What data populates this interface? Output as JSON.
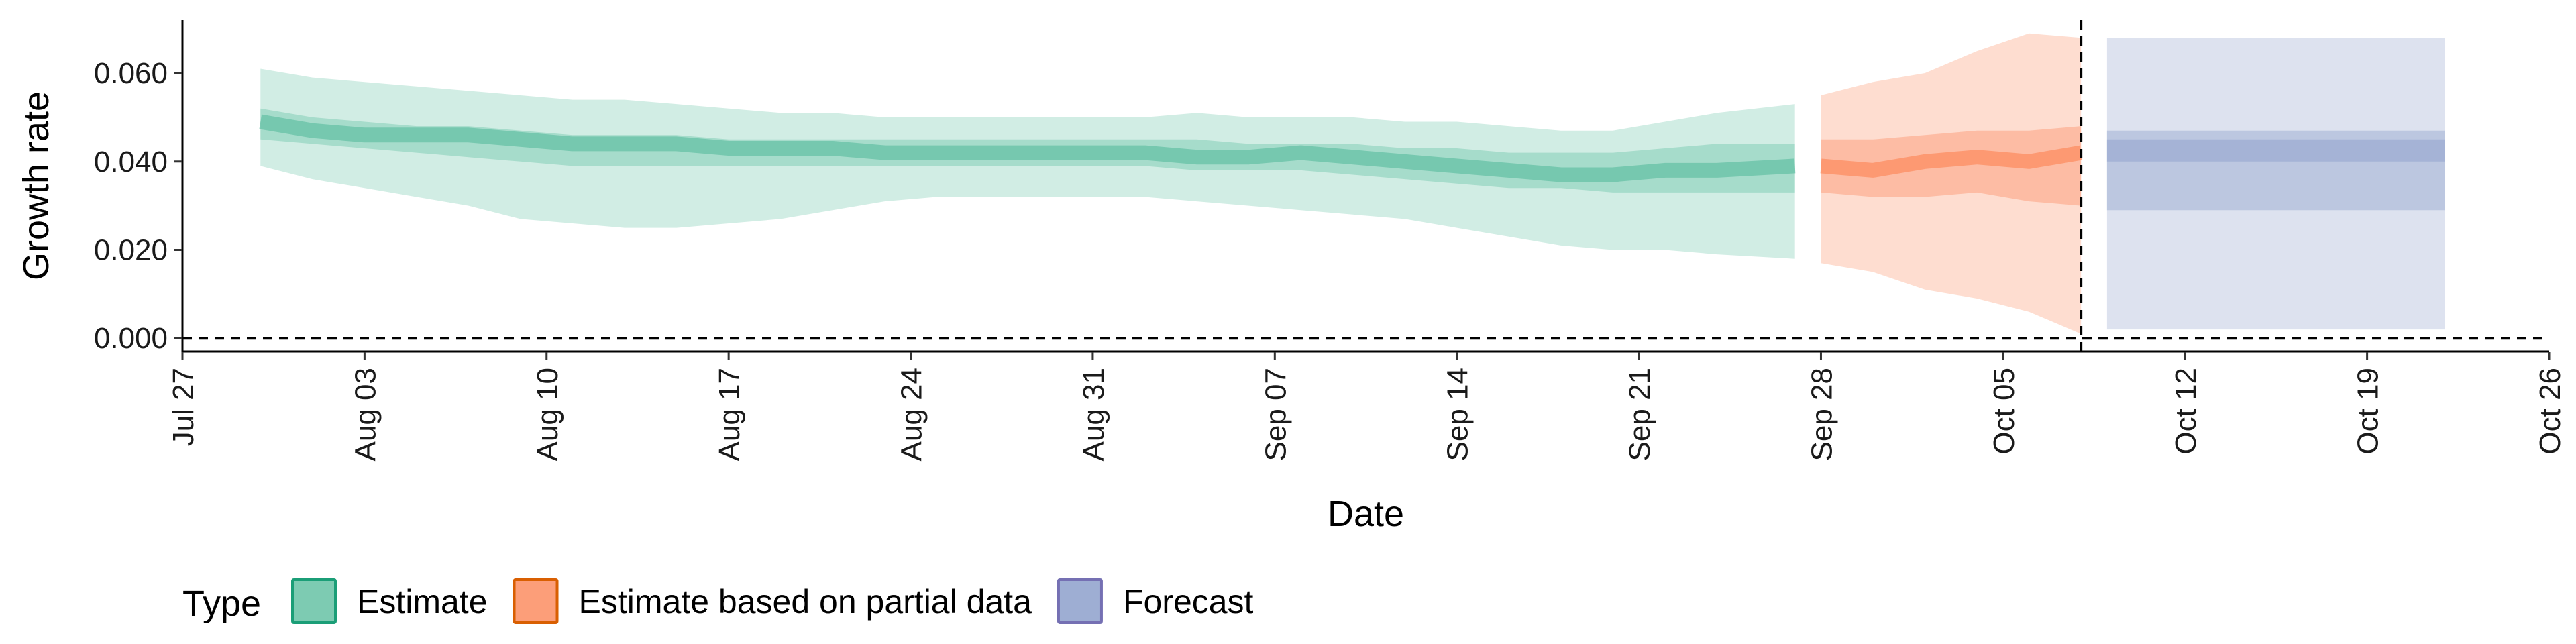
{
  "chart_data": {
    "type": "area",
    "xlabel": "Date",
    "ylabel": "Growth rate",
    "xlim": [
      "2021-07-27",
      "2021-10-26"
    ],
    "ylim": [
      -0.003,
      0.072
    ],
    "x_ticks": [
      "2021-07-27",
      "2021-08-03",
      "2021-08-10",
      "2021-08-17",
      "2021-08-24",
      "2021-08-31",
      "2021-09-07",
      "2021-09-14",
      "2021-09-21",
      "2021-09-28",
      "2021-10-05",
      "2021-10-12",
      "2021-10-19",
      "2021-10-26"
    ],
    "x_tick_labels": [
      "Jul 27",
      "Aug 03",
      "Aug 10",
      "Aug 17",
      "Aug 24",
      "Aug 31",
      "Sep 07",
      "Sep 14",
      "Sep 21",
      "Sep 28",
      "Oct 05",
      "Oct 12",
      "Oct 19",
      "Oct 26"
    ],
    "y_ticks": [
      0.0,
      0.02,
      0.04,
      0.06
    ],
    "y_tick_labels": [
      "0.000",
      "0.020",
      "0.040",
      "0.060"
    ],
    "hline_dashed": 0.0,
    "vline_dashed": "2021-10-08",
    "legend": {
      "title": "Type",
      "position": "bottom-left"
    },
    "colors": {
      "Estimate": "#66c2a5",
      "Estimate based on partial data": "#fc8d62",
      "Forecast": "#8da0cb"
    },
    "legend_border_colors": {
      "Estimate": "#1b9e77",
      "Estimate based on partial data": "#d95f02",
      "Forecast": "#7570b3"
    },
    "series": [
      {
        "name": "Estimate",
        "x": [
          "2021-07-30",
          "2021-08-01",
          "2021-08-03",
          "2021-08-05",
          "2021-08-07",
          "2021-08-09",
          "2021-08-11",
          "2021-08-13",
          "2021-08-15",
          "2021-08-17",
          "2021-08-19",
          "2021-08-21",
          "2021-08-23",
          "2021-08-25",
          "2021-08-27",
          "2021-08-29",
          "2021-08-31",
          "2021-09-02",
          "2021-09-04",
          "2021-09-06",
          "2021-09-08",
          "2021-09-10",
          "2021-09-12",
          "2021-09-14",
          "2021-09-16",
          "2021-09-18",
          "2021-09-20",
          "2021-09-22",
          "2021-09-24",
          "2021-09-27"
        ],
        "median": [
          0.049,
          0.047,
          0.046,
          0.046,
          0.046,
          0.045,
          0.044,
          0.044,
          0.044,
          0.043,
          0.043,
          0.043,
          0.042,
          0.042,
          0.042,
          0.042,
          0.042,
          0.042,
          0.041,
          0.041,
          0.042,
          0.041,
          0.04,
          0.039,
          0.038,
          0.037,
          0.037,
          0.038,
          0.038,
          0.039
        ],
        "lower_90": [
          0.039,
          0.036,
          0.034,
          0.032,
          0.03,
          0.027,
          0.026,
          0.025,
          0.025,
          0.026,
          0.027,
          0.029,
          0.031,
          0.032,
          0.032,
          0.032,
          0.032,
          0.032,
          0.031,
          0.03,
          0.029,
          0.028,
          0.027,
          0.025,
          0.023,
          0.021,
          0.02,
          0.02,
          0.019,
          0.018
        ],
        "upper_90": [
          0.061,
          0.059,
          0.058,
          0.057,
          0.056,
          0.055,
          0.054,
          0.054,
          0.053,
          0.052,
          0.051,
          0.051,
          0.05,
          0.05,
          0.05,
          0.05,
          0.05,
          0.05,
          0.051,
          0.05,
          0.05,
          0.05,
          0.049,
          0.049,
          0.048,
          0.047,
          0.047,
          0.049,
          0.051,
          0.053
        ],
        "lower_50": [
          0.045,
          0.044,
          0.043,
          0.042,
          0.041,
          0.04,
          0.039,
          0.039,
          0.039,
          0.039,
          0.039,
          0.039,
          0.039,
          0.039,
          0.039,
          0.039,
          0.039,
          0.039,
          0.038,
          0.038,
          0.038,
          0.037,
          0.036,
          0.035,
          0.034,
          0.034,
          0.033,
          0.033,
          0.033,
          0.033
        ],
        "upper_50": [
          0.052,
          0.05,
          0.049,
          0.048,
          0.048,
          0.047,
          0.046,
          0.046,
          0.046,
          0.045,
          0.045,
          0.045,
          0.045,
          0.045,
          0.045,
          0.045,
          0.045,
          0.045,
          0.045,
          0.044,
          0.044,
          0.044,
          0.043,
          0.043,
          0.042,
          0.042,
          0.042,
          0.043,
          0.044,
          0.044
        ]
      },
      {
        "name": "Estimate based on partial data",
        "x": [
          "2021-09-28",
          "2021-09-30",
          "2021-10-02",
          "2021-10-04",
          "2021-10-06",
          "2021-10-08"
        ],
        "median": [
          0.039,
          0.038,
          0.04,
          0.041,
          0.04,
          0.042
        ],
        "lower_90": [
          0.017,
          0.015,
          0.011,
          0.009,
          0.006,
          0.001
        ],
        "upper_90": [
          0.055,
          0.058,
          0.06,
          0.065,
          0.069,
          0.068
        ],
        "lower_50": [
          0.033,
          0.032,
          0.032,
          0.033,
          0.031,
          0.03
        ],
        "upper_50": [
          0.045,
          0.045,
          0.046,
          0.047,
          0.047,
          0.048
        ]
      },
      {
        "name": "Forecast",
        "x": [
          "2021-10-09",
          "2021-10-22"
        ],
        "median": [
          0.042,
          0.042
        ],
        "lower_90": [
          0.002,
          0.002
        ],
        "upper_90": [
          0.068,
          0.068
        ],
        "lower_50": [
          0.029,
          0.029
        ],
        "upper_50": [
          0.047,
          0.047
        ],
        "lower_20": [
          0.04,
          0.04
        ],
        "upper_20": [
          0.045,
          0.045
        ]
      }
    ]
  }
}
